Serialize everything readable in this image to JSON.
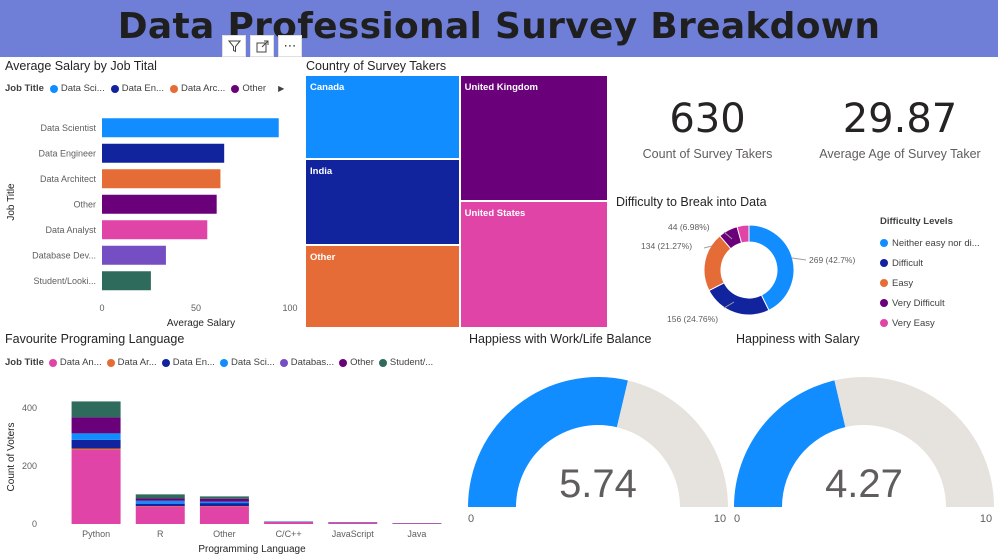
{
  "header": {
    "title": "Data Professional Survey Breakdown"
  },
  "visual_header": {
    "filter_icon": "filter-icon",
    "focus_icon": "focus-mode-icon",
    "more_icon": "more-options-icon",
    "more_label": "⋯"
  },
  "salary_chart": {
    "title": "Average Salary by Job Tital",
    "legend_title": "Job Title",
    "legend_items": [
      "Data Sci...",
      "Data En...",
      "Data Arc...",
      "Other"
    ],
    "legend_more": "▶"
  },
  "country_chart": {
    "title": "Country of Survey Takers"
  },
  "kpi": {
    "count_value": "630",
    "count_label": "Count of Survey Takers",
    "age_value": "29.87",
    "age_label": "Average Age of Survey Taker"
  },
  "difficulty_chart": {
    "title": "Difficulty to Break into Data",
    "legend_title": "Difficulty Levels",
    "legend_items": [
      "Neither easy nor di...",
      "Difficult",
      "Easy",
      "Very Difficult",
      "Very Easy"
    ],
    "labels": [
      "269 (42.7%)",
      "156 (24.76%)",
      "134 (21.27%)",
      "44 (6.98%)"
    ]
  },
  "language_chart": {
    "title": "Favourite Programing Language",
    "legend_title": "Job Title",
    "legend_items": [
      "Data An...",
      "Data Ar...",
      "Data En...",
      "Data Sci...",
      "Databas...",
      "Other",
      "Student/..."
    ]
  },
  "worklife_gauge": {
    "title": "Happiess with Work/Life Balance",
    "value": "5.74",
    "min": "0",
    "max": "10"
  },
  "salary_gauge": {
    "title": "Happiness with Salary",
    "value": "4.27",
    "min": "0",
    "max": "10"
  },
  "colors": {
    "data_scientist": "#118dff",
    "data_engineer": "#12239e",
    "data_architect": "#e66c37",
    "other": "#6b007b",
    "data_analyst": "#e044a7",
    "database_dev": "#744ec2",
    "student": "#2e6b5c",
    "gauge_track": "#e6e2dd",
    "gauge_fill": "#118dff"
  },
  "chart_data": [
    {
      "type": "bar",
      "orientation": "horizontal",
      "title": "Average Salary by Job Tital",
      "xlabel": "Average Salary",
      "ylabel": "Job Title",
      "categories": [
        "Data Scientist",
        "Data Engineer",
        "Data Architect",
        "Other",
        "Data Analyst",
        "Database Dev...",
        "Student/Looki..."
      ],
      "values": [
        94,
        65,
        63,
        61,
        56,
        34,
        26
      ],
      "xlim": [
        0,
        100
      ],
      "xticks": [
        "0",
        "50",
        "100"
      ]
    },
    {
      "type": "treemap",
      "title": "Country of Survey Takers",
      "categories": [
        "Canada",
        "India",
        "Other",
        "United Kingdom",
        "United States"
      ],
      "values": [
        83,
        84,
        82,
        119,
        120
      ]
    },
    {
      "type": "pie",
      "variant": "donut",
      "title": "Difficulty to Break into Data",
      "categories": [
        "Neither easy nor difficult",
        "Difficult",
        "Easy",
        "Very Difficult",
        "Very Easy"
      ],
      "values": [
        269,
        156,
        134,
        44,
        27
      ]
    },
    {
      "type": "bar",
      "stacked": true,
      "title": "Favourite Programing Language",
      "xlabel": "Programming Language",
      "ylabel": "Count of Voters",
      "categories": [
        "Python",
        "R",
        "Other",
        "C/C++",
        "JavaScript",
        "Java"
      ],
      "ylim": [
        0,
        420
      ],
      "yticks": [
        "0",
        "200",
        "400"
      ],
      "series": [
        {
          "name": "Data An...",
          "values": [
            255,
            60,
            60,
            7,
            4,
            2
          ]
        },
        {
          "name": "Data Ar...",
          "values": [
            5,
            2,
            2,
            0,
            0,
            0
          ]
        },
        {
          "name": "Data En...",
          "values": [
            30,
            8,
            10,
            1,
            1,
            1
          ]
        },
        {
          "name": "Data Sci...",
          "values": [
            22,
            10,
            5,
            1,
            0,
            0
          ]
        },
        {
          "name": "Databas...",
          "values": [
            0,
            0,
            0,
            0,
            0,
            0
          ]
        },
        {
          "name": "Other",
          "values": [
            55,
            8,
            10,
            0,
            1,
            0
          ]
        },
        {
          "name": "Student/...",
          "values": [
            55,
            14,
            8,
            0,
            0,
            0
          ]
        }
      ]
    },
    {
      "type": "gauge",
      "title": "Happiess with Work/Life Balance",
      "value": 5.74,
      "min": 0,
      "max": 10
    },
    {
      "type": "gauge",
      "title": "Happiness with Salary",
      "value": 4.27,
      "min": 0,
      "max": 10
    }
  ]
}
